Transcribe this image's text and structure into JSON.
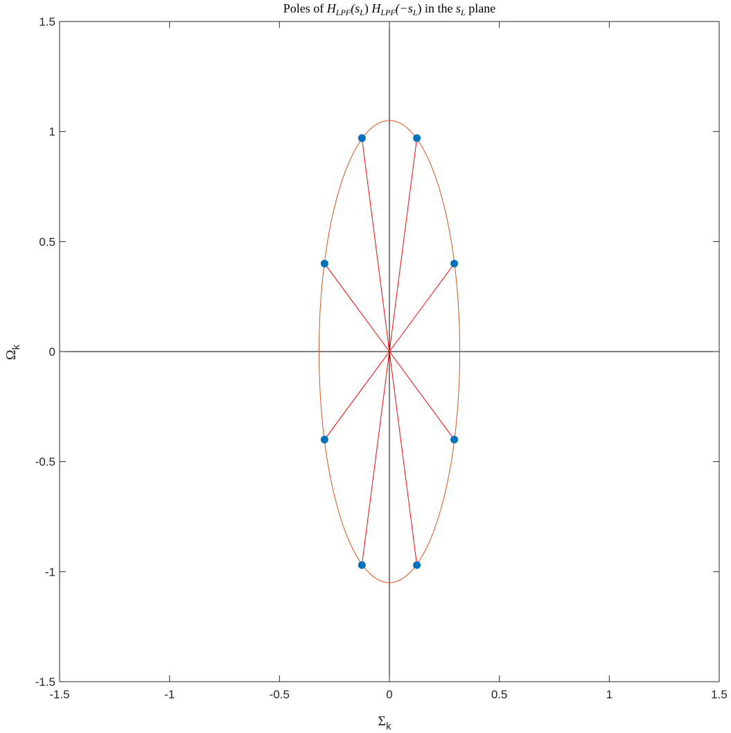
{
  "chart_data": {
    "type": "scatter",
    "title": {
      "prefix": "Poles of ",
      "H1": "H",
      "H1_sub": "LPF",
      "H1_arg": "(s",
      "H1_arg_sub": "L",
      "H1_close": ")",
      "H2": "H",
      "H2_sub": "LPF",
      "H2_arg": "(−s",
      "H2_arg_sub": "L",
      "H2_close": ")",
      "mid": " in the ",
      "s": "s",
      "s_sub": "L",
      "suffix": " plane"
    },
    "xlabel": {
      "main": "Σ",
      "sub": "k"
    },
    "ylabel": {
      "main": "Ω",
      "sub": "k"
    },
    "xlim": [
      -1.5,
      1.5
    ],
    "ylim": [
      -1.5,
      1.5
    ],
    "xticks": [
      -1.5,
      -1,
      -0.5,
      0,
      0.5,
      1,
      1.5
    ],
    "yticks": [
      -1.5,
      -1,
      -0.5,
      0,
      0.5,
      1,
      1.5
    ],
    "xtick_labels": [
      "-1.5",
      "-1",
      "-0.5",
      "0",
      "0.5",
      "1",
      "1.5"
    ],
    "ytick_labels": [
      "-1.5",
      "-1",
      "-0.5",
      "0",
      "0.5",
      "1",
      "1.5"
    ],
    "grid": false,
    "poles": [
      {
        "x": -0.125,
        "y": 0.97
      },
      {
        "x": 0.125,
        "y": 0.97
      },
      {
        "x": -0.295,
        "y": 0.4
      },
      {
        "x": 0.295,
        "y": 0.4
      },
      {
        "x": -0.295,
        "y": -0.4
      },
      {
        "x": 0.295,
        "y": -0.4
      },
      {
        "x": -0.125,
        "y": -0.97
      },
      {
        "x": 0.125,
        "y": -0.97
      }
    ],
    "ellipse": {
      "semi_x": 0.32,
      "semi_y": 1.05
    },
    "colors": {
      "poles": "#0072BD",
      "spokes": "#FF0000",
      "ellipse": "#D95319",
      "axes_lines": "#000000",
      "box": "#262626"
    }
  }
}
